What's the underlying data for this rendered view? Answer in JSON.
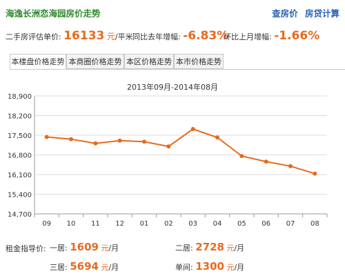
{
  "header": {
    "title": "海逸长洲恋海园房价走势",
    "links": [
      "查房价",
      "房贷计算"
    ]
  },
  "stats": {
    "price_label": "二手房评估单价:",
    "price_value": "16133",
    "price_unit": "元",
    "price_unit2": "/平米",
    "yoy_label": "同比去年增幅:",
    "yoy_value": "-6.83%",
    "mom_label": "环比上月增幅:",
    "mom_value": "-1.66%"
  },
  "tabs": [
    "本楼盘价格走势",
    "本商圈价格走势",
    "本区价格走势",
    "本市价格走势"
  ],
  "chart_data": {
    "type": "line",
    "title": "2013年09月-2014年08月",
    "categories": [
      "09",
      "10",
      "11",
      "12",
      "01",
      "02",
      "03",
      "04",
      "05",
      "06",
      "07",
      "08"
    ],
    "series": [
      {
        "values": [
          17440,
          17360,
          17210,
          17310,
          17270,
          17100,
          17720,
          17420,
          16760,
          16560,
          16400,
          16133
        ]
      }
    ],
    "yticks": [
      "18,900",
      "18,200",
      "17,500",
      "16,800",
      "16,100",
      "15,400",
      "14,700"
    ],
    "ylim": [
      14700,
      18900
    ],
    "grid": true,
    "line_color": "#e8691e"
  },
  "rent": {
    "label": "租金指导价:",
    "items": [
      {
        "label": "一居:",
        "value": "1609",
        "unit": "元",
        "unit2": "/月"
      },
      {
        "label": "二居:",
        "value": "2728",
        "unit": "元",
        "unit2": "/月"
      },
      {
        "label": "三居:",
        "value": "5694",
        "unit": "元",
        "unit2": "/月"
      },
      {
        "label": "单间:",
        "value": "1300",
        "unit": "元",
        "unit2": "/月"
      }
    ]
  }
}
